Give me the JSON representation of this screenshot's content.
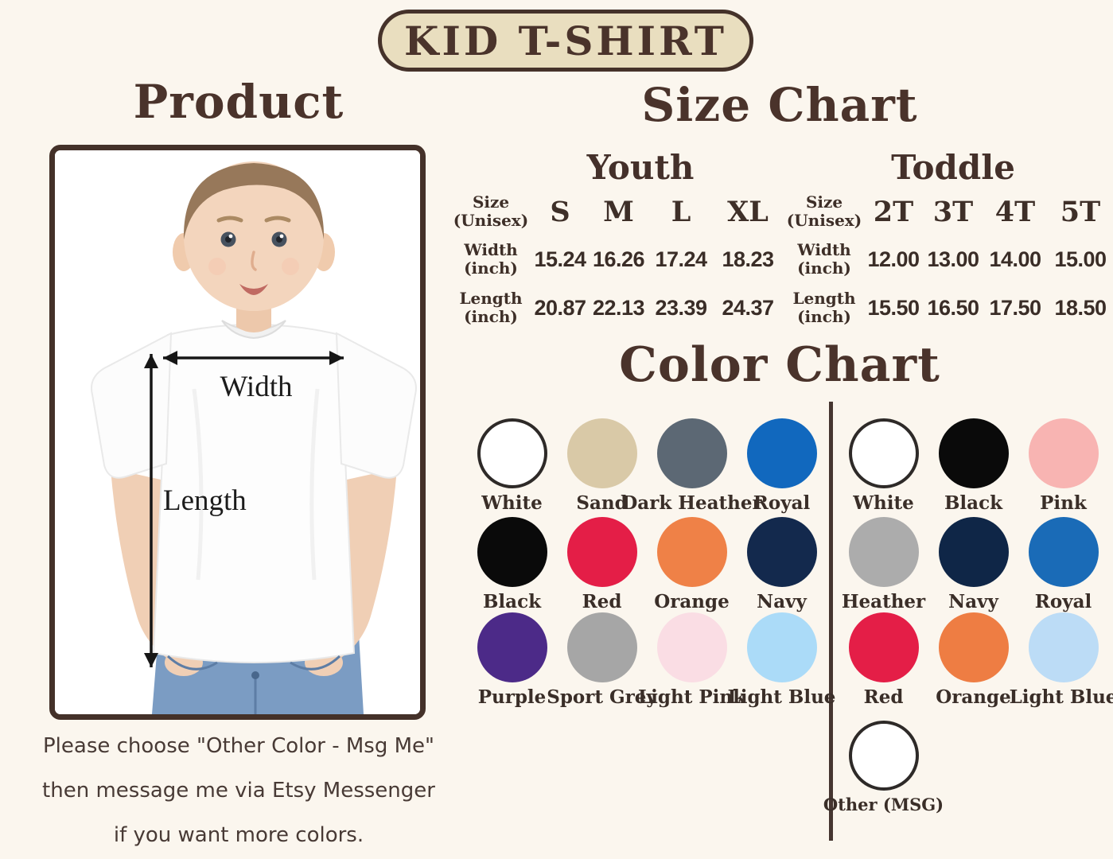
{
  "badge": {
    "label": "KID T-SHIRT"
  },
  "product": {
    "title": "Product",
    "width_label": "Width",
    "length_label": "Length"
  },
  "size_chart": {
    "title": "Size Chart",
    "row_labels": [
      [
        "Size",
        "(Unisex)"
      ],
      [
        "Width",
        "(inch)"
      ],
      [
        "Length",
        "(inch)"
      ]
    ],
    "groups": [
      {
        "name": "Youth",
        "sizes": [
          "S",
          "M",
          "L",
          "XL"
        ],
        "width_inch": [
          "15.24",
          "16.26",
          "17.24",
          "18.23"
        ],
        "length_inch": [
          "20.87",
          "22.13",
          "23.39",
          "24.37"
        ]
      },
      {
        "name": "Toddle",
        "sizes": [
          "2T",
          "3T",
          "4T",
          "5T"
        ],
        "width_inch": [
          "12.00",
          "13.00",
          "14.00",
          "15.00"
        ],
        "length_inch": [
          "15.50",
          "16.50",
          "17.50",
          "18.50"
        ]
      }
    ]
  },
  "color_chart": {
    "title": "Color Chart",
    "left_swatches": [
      {
        "name": "White",
        "hex": "#ffffff",
        "outline": true
      },
      {
        "name": "Sand",
        "hex": "#d9c9a7"
      },
      {
        "name": "Dark Heather",
        "hex": "#5c6874"
      },
      {
        "name": "Royal",
        "hex": "#1168be"
      },
      {
        "name": "Black",
        "hex": "#0a0a0a"
      },
      {
        "name": "Red",
        "hex": "#e41e47"
      },
      {
        "name": "Orange",
        "hex": "#ef8147"
      },
      {
        "name": "Navy",
        "hex": "#13294d"
      },
      {
        "name": "Purple",
        "hex": "#4c2a88"
      },
      {
        "name": "Sport Grey",
        "hex": "#a6a6a6"
      },
      {
        "name": "Light Pink",
        "hex": "#fadde4"
      },
      {
        "name": "Light Blue",
        "hex": "#abdbf8"
      }
    ],
    "right_swatches": [
      {
        "name": "White",
        "hex": "#ffffff",
        "outline": true
      },
      {
        "name": "Black",
        "hex": "#0a0a0a"
      },
      {
        "name": "Pink",
        "hex": "#f8b4b2"
      },
      {
        "name": "Heather",
        "hex": "#acacac"
      },
      {
        "name": "Navy",
        "hex": "#0f2647"
      },
      {
        "name": "Royal",
        "hex": "#1a6bb7"
      },
      {
        "name": "Red",
        "hex": "#e41e47"
      },
      {
        "name": "Orange",
        "hex": "#ee7d43"
      },
      {
        "name": "Light Blue",
        "hex": "#bcdcf6"
      }
    ],
    "other": {
      "name": "Other (MSG)",
      "hex": "#ffffff",
      "outline": true
    }
  },
  "footer": {
    "lines": [
      "Please choose \"Other Color - Msg Me\"",
      "then message me via Etsy Messenger",
      "if you want more colors."
    ]
  }
}
